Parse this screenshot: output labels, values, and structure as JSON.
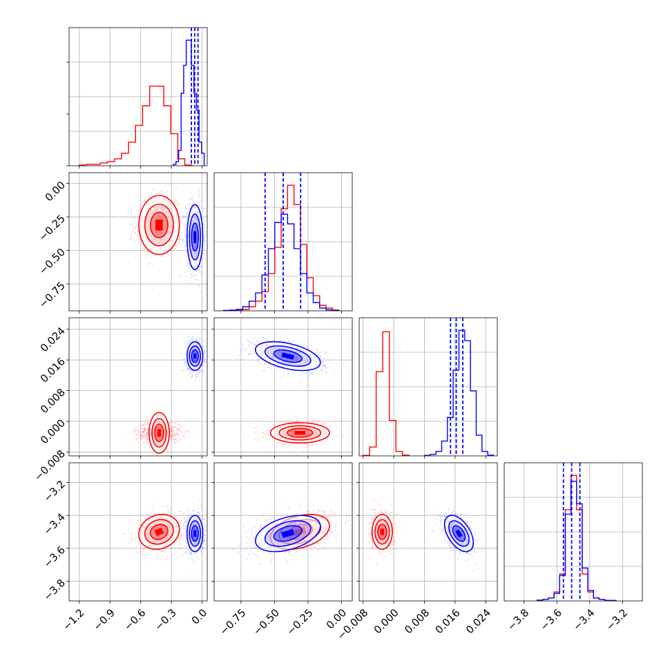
{
  "figure": {
    "colors": {
      "series_a": "#ff0000",
      "series_b": "#0000ff",
      "grid": "#b0b0b0"
    }
  },
  "chart_data": {
    "type": "corner",
    "grid": true,
    "params": [
      {
        "key": "p0",
        "range": [
          -1.3,
          0.05
        ],
        "ticks": [
          -1.2,
          -0.9,
          -0.6,
          -0.3,
          0.0
        ],
        "tick_labels": [
          "−1.2",
          "−0.9",
          "−0.6",
          "−0.3",
          "0.0"
        ]
      },
      {
        "key": "p1",
        "range": [
          -0.95,
          0.08
        ],
        "ticks": [
          -0.75,
          -0.5,
          -0.25,
          0.0
        ],
        "tick_labels": [
          "−0.75",
          "−0.50",
          "−0.25",
          "0.00"
        ]
      },
      {
        "key": "p2",
        "range": [
          -0.009,
          0.027
        ],
        "ticks": [
          -0.008,
          0.0,
          0.008,
          0.016,
          0.024
        ],
        "tick_labels": [
          "−0.008",
          "0.000",
          "0.008",
          "0.016",
          "0.024"
        ]
      },
      {
        "key": "p3",
        "range": [
          -3.92,
          -3.08
        ],
        "ticks": [
          -3.8,
          -3.6,
          -3.4,
          -3.2
        ],
        "tick_labels": [
          "−3.8",
          "−3.6",
          "−3.4",
          "−3.2"
        ]
      }
    ],
    "series": [
      {
        "name": "",
        "color": "#ff0000",
        "mean": [
          -0.42,
          -0.31,
          -0.003,
          -3.5
        ],
        "sd": [
          0.09,
          0.1,
          0.0012,
          0.048
        ],
        "corr": {
          "0-1": 0.0,
          "0-2": 0.0,
          "0-3": 0.15,
          "1-2": 0.0,
          "1-3": 0.35,
          "2-3": 0.0
        },
        "hist": [
          {
            "edges": [
              -1.2,
              -0.1
            ],
            "counts": [
              0.5,
              1,
              1,
              2,
              3,
              5,
              9,
              17,
              29,
              43,
              57,
              57,
              43,
              23,
              5,
              0.5
            ]
          },
          {
            "edges": [
              -0.88,
              -0.02
            ],
            "counts": [
              0.2,
              0.3,
              0.5,
              1,
              3,
              7,
              14,
              27,
              46,
              74,
              91,
              77,
              48,
              24,
              11,
              4,
              2,
              0.6
            ]
          },
          {
            "edges": [
              -0.008,
              0.004
            ],
            "counts": [
              0.3,
              6,
              57,
              84,
              24,
              3,
              0.5
            ]
          },
          {
            "edges": [
              -3.72,
              -3.24
            ],
            "counts": [
              0.5,
              1,
              2,
              6,
              18,
              61,
              84,
              61,
              18,
              6,
              2,
              1,
              0.3,
              0.3
            ]
          }
        ]
      },
      {
        "name": "",
        "color": "#0000ff",
        "mean": [
          -0.07,
          -0.4,
          0.017,
          -3.51
        ],
        "sd": [
          0.035,
          0.11,
          0.0017,
          0.05
        ],
        "corr": {
          "0-1": 0.0,
          "0-2": 0.0,
          "0-3": 0.0,
          "1-2": -0.45,
          "1-3": 0.4,
          "2-3": -0.5
        },
        "hist": [
          {
            "edges": [
              -0.28,
              0.02
            ],
            "counts": [
              1,
              3,
              11,
              52,
              72,
              90,
              90,
              72,
              52,
              40,
              17,
              9
            ]
          },
          {
            "edges": [
              -0.88,
              -0.02
            ],
            "counts": [
              0.3,
              0.5,
              1,
              3,
              7,
              13,
              26,
              45,
              64,
              70,
              63,
              45,
              27,
              13,
              6,
              2,
              0.7,
              0.2
            ]
          },
          {
            "edges": [
              0.008,
              0.026
            ],
            "counts": [
              0.3,
              1,
              3,
              10,
              26,
              58,
              85,
              78,
              44,
              14,
              3,
              0.5
            ]
          },
          {
            "edges": [
              -3.72,
              -3.24
            ],
            "counts": [
              0.5,
              1,
              2,
              5,
              17,
              58,
              80,
              65,
              22,
              7,
              2,
              1,
              0.3,
              0.3
            ]
          }
        ]
      }
    ],
    "quantile_lines": [
      {
        "param": "p0",
        "values": [
          -0.105,
          -0.072,
          -0.04
        ],
        "color": "#0000ff"
      },
      {
        "param": "p1",
        "values": [
          -0.57,
          -0.435,
          -0.305
        ],
        "color": "#0000ff"
      },
      {
        "param": "p2",
        "values": [
          0.0148,
          0.0163,
          0.018
        ],
        "color": "#0000ff"
      },
      {
        "param": "p3",
        "values": [
          -3.56,
          -3.51,
          -3.46
        ],
        "color": "#0000ff"
      }
    ]
  }
}
